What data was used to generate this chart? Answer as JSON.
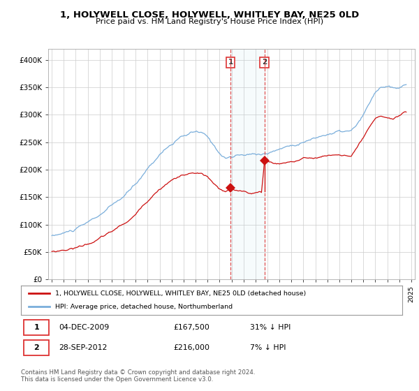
{
  "title": "1, HOLYWELL CLOSE, HOLYWELL, WHITLEY BAY, NE25 0LD",
  "subtitle": "Price paid vs. HM Land Registry's House Price Index (HPI)",
  "legend_line1": "1, HOLYWELL CLOSE, HOLYWELL, WHITLEY BAY, NE25 0LD (detached house)",
  "legend_line2": "HPI: Average price, detached house, Northumberland",
  "sale1_label": "1",
  "sale1_date": "04-DEC-2009",
  "sale1_price": "£167,500",
  "sale1_hpi": "31% ↓ HPI",
  "sale2_label": "2",
  "sale2_date": "28-SEP-2012",
  "sale2_price": "£216,000",
  "sale2_hpi": "7% ↓ HPI",
  "footer": "Contains HM Land Registry data © Crown copyright and database right 2024.\nThis data is licensed under the Open Government Licence v3.0.",
  "hpi_color": "#7aaedb",
  "price_color": "#cc1111",
  "sale_vline_color": "#dd3333",
  "bg_color": "#ffffff",
  "grid_color": "#cccccc",
  "ylim": [
    0,
    420000
  ],
  "yticks": [
    0,
    50000,
    100000,
    150000,
    200000,
    250000,
    300000,
    350000,
    400000
  ],
  "ytick_labels": [
    "£0",
    "£50K",
    "£100K",
    "£150K",
    "£200K",
    "£250K",
    "£300K",
    "£350K",
    "£400K"
  ],
  "sale1_x": 2009.917,
  "sale1_y": 167500,
  "sale2_x": 2012.75,
  "sale2_y": 216000,
  "sale2_y_prev": 161000,
  "xlim_left": 1994.7,
  "xlim_right": 2025.3
}
